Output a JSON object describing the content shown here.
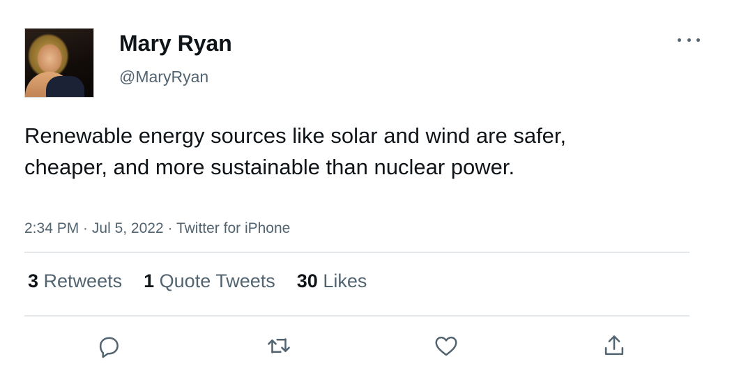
{
  "tweet": {
    "author": {
      "name": "Mary Ryan",
      "handle": "@MaryRyan"
    },
    "text": "Renewable energy sources like solar and wind are safer, cheaper, and more sustainable than nuclear power.",
    "meta": {
      "time": "2:34 PM",
      "separator": " · ",
      "date": "Jul 5, 2022",
      "source": "Twitter for iPhone"
    },
    "stats": {
      "retweets": {
        "count": "3",
        "label": "Retweets"
      },
      "quotes": {
        "count": "1",
        "label": "Quote Tweets"
      },
      "likes": {
        "count": "30",
        "label": "Likes"
      }
    },
    "icons": {
      "more": "more-horizontal-icon",
      "reply": "reply-icon",
      "retweet": "retweet-icon",
      "like": "heart-icon",
      "share": "share-icon"
    },
    "colors": {
      "primary_text": "#0f1419",
      "secondary_text": "#536471",
      "divider": "#e3e7ea"
    }
  }
}
